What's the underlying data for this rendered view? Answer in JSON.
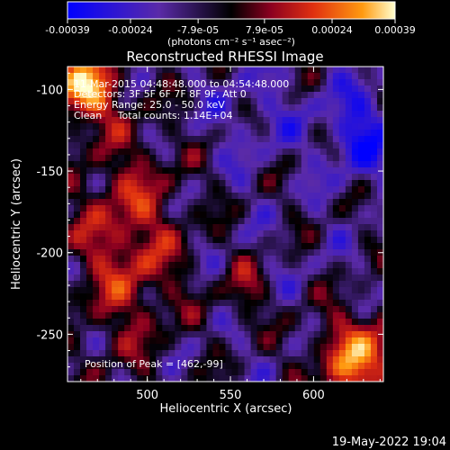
{
  "colorbar": {
    "tick_labels": [
      "-0.00039",
      "-0.00024",
      "-7.9e-05",
      "7.9e-05",
      "0.00024",
      "0.00039"
    ],
    "tick_values": [
      -0.00039,
      -0.00024,
      -7.9e-05,
      7.9e-05,
      0.00024,
      0.00039
    ],
    "range": [
      -0.00039,
      0.00039
    ],
    "unit_label": "(photons cm⁻² s⁻¹ asec⁻²)"
  },
  "chart_data": {
    "type": "heatmap",
    "title": "Reconstructed RHESSI Image",
    "xlabel": "Heliocentric X (arcsec)",
    "ylabel": "Heliocentric Y (arcsec)",
    "xlim": [
      452,
      642
    ],
    "ylim": [
      -279,
      -86
    ],
    "x_ticks": [
      500,
      550,
      600
    ],
    "y_ticks": [
      -100,
      -150,
      -200,
      -250
    ],
    "annotations": [
      "11-Mar-2015 04:48:48.000 to 04:54:48.000",
      "Detectors: 3F 5F 6F 7F 8F 9F, Att 0",
      "Energy Range: 25.0 - 50.0 keV",
      "Clean     Total counts: 1.14E+04",
      "Position of Peak = [462,-99]"
    ],
    "peak": {
      "x": 462,
      "y": -99
    },
    "colors": {
      "negative_low": "#0000ff",
      "negative_mid": "#5a2aa8",
      "zero": "#000000",
      "positive_low": "#8b0020",
      "positive_mid": "#e03010",
      "positive_high": "#ff9a10",
      "positive_max": "#ffffd0"
    }
  },
  "footer": {
    "timestamp": "19-May-2022 19:04"
  }
}
